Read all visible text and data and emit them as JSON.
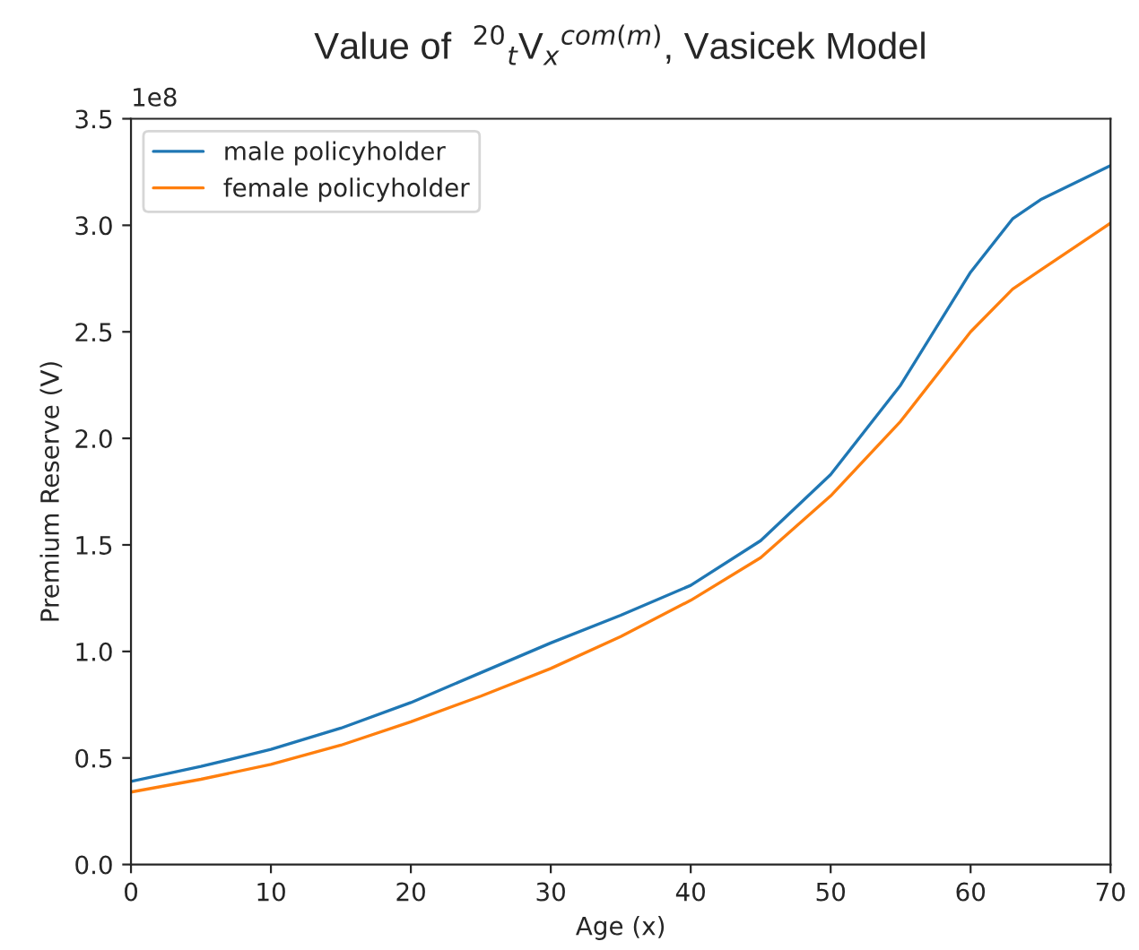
{
  "chart_data": {
    "type": "line",
    "title": "Value of  $^{20}$$_{t}$V$_{x}$$^{com(m)}$, Vasicek Model",
    "xlabel": "Age (x)",
    "ylabel": "Premium Reserve (V)",
    "x": [
      0,
      5,
      10,
      15,
      20,
      25,
      30,
      35,
      40,
      45,
      50,
      55,
      60,
      63,
      65,
      70
    ],
    "series": [
      {
        "name": "male policyholder",
        "color": "#1f77b4",
        "values": [
          0.39,
          0.46,
          0.54,
          0.64,
          0.76,
          0.9,
          1.04,
          1.17,
          1.31,
          1.52,
          1.83,
          2.25,
          2.78,
          3.03,
          3.12,
          3.28
        ]
      },
      {
        "name": "female policyholder",
        "color": "#ff7f0e",
        "values": [
          0.34,
          0.4,
          0.47,
          0.56,
          0.67,
          0.79,
          0.92,
          1.07,
          1.24,
          1.44,
          1.73,
          2.08,
          2.5,
          2.7,
          2.79,
          3.01
        ]
      }
    ],
    "xlim": [
      0,
      70
    ],
    "xticks": [
      0,
      10,
      20,
      30,
      40,
      50,
      60,
      70
    ],
    "ylim": [
      0,
      3.5
    ],
    "yticks": [
      {
        "value": 0,
        "label": "0.0"
      },
      0.5,
      {
        "value": 1,
        "label": "1.0"
      },
      1.5,
      {
        "value": 2,
        "label": "2.0"
      },
      2.5,
      {
        "value": 3,
        "label": "3.0"
      },
      3.5
    ],
    "annotations": [
      "1e8"
    ],
    "legend": "top left",
    "grid": false,
    "marker": "none",
    "line_style": "solid"
  }
}
